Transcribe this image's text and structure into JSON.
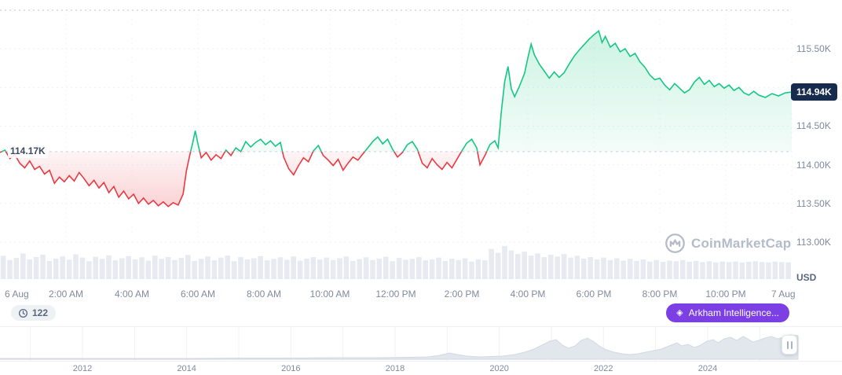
{
  "watermark": "CoinMarketCap",
  "colors": {
    "up": "#16c784",
    "down": "#ea3943",
    "price_tag_bg": "#172b4d",
    "annotation_badge_bg": "#7b3fe4",
    "axis_text": "#808a9d"
  },
  "chart": {
    "baseline_label": "114.17K",
    "current_price_label": "114.94K",
    "unit_label": "USD",
    "y_axis_labels": [
      "115.50K",
      "114.50K",
      "114.00K",
      "113.50K",
      "113.00K"
    ]
  },
  "badges": {
    "history_count": "122",
    "annotation": "Arkham Intelligence..."
  },
  "chart_data": {
    "type": "line",
    "title": "Price, 6 Aug - 7 Aug (USD)",
    "x_unit": "hours since 6 Aug 00:00",
    "y_unit": "USD thousands",
    "ylim": [
      112.95,
      116.13
    ],
    "baseline": 114.17,
    "current_price": 114.94,
    "grid_prices": [
      115.5,
      115.0,
      114.5,
      114.0,
      113.5,
      113.0
    ],
    "x_ticks": [
      {
        "label": "6 Aug",
        "t": 0
      },
      {
        "label": "2:00 AM",
        "t": 2
      },
      {
        "label": "4:00 AM",
        "t": 4
      },
      {
        "label": "6:00 AM",
        "t": 6
      },
      {
        "label": "8:00 AM",
        "t": 8
      },
      {
        "label": "10:00 AM",
        "t": 10
      },
      {
        "label": "12:00 PM",
        "t": 12
      },
      {
        "label": "2:00 PM",
        "t": 14
      },
      {
        "label": "4:00 PM",
        "t": 16
      },
      {
        "label": "6:00 PM",
        "t": 18
      },
      {
        "label": "8:00 PM",
        "t": 20
      },
      {
        "label": "10:00 PM",
        "t": 22
      },
      {
        "label": "7 Aug",
        "t": 24
      }
    ],
    "points": [
      [
        0,
        114.16
      ],
      [
        0.15,
        114.19
      ],
      [
        0.3,
        114.08
      ],
      [
        0.45,
        114.13
      ],
      [
        0.6,
        114.02
      ],
      [
        0.75,
        113.96
      ],
      [
        0.9,
        114.05
      ],
      [
        1.05,
        113.94
      ],
      [
        1.2,
        113.98
      ],
      [
        1.35,
        113.88
      ],
      [
        1.5,
        113.93
      ],
      [
        1.65,
        113.76
      ],
      [
        1.8,
        113.84
      ],
      [
        1.95,
        113.78
      ],
      [
        2.1,
        113.86
      ],
      [
        2.25,
        113.79
      ],
      [
        2.4,
        113.9
      ],
      [
        2.55,
        113.82
      ],
      [
        2.7,
        113.73
      ],
      [
        2.85,
        113.8
      ],
      [
        3.0,
        113.7
      ],
      [
        3.15,
        113.77
      ],
      [
        3.3,
        113.64
      ],
      [
        3.45,
        113.72
      ],
      [
        3.6,
        113.58
      ],
      [
        3.75,
        113.66
      ],
      [
        3.9,
        113.56
      ],
      [
        4.05,
        113.62
      ],
      [
        4.2,
        113.5
      ],
      [
        4.35,
        113.57
      ],
      [
        4.5,
        113.49
      ],
      [
        4.65,
        113.54
      ],
      [
        4.8,
        113.47
      ],
      [
        4.95,
        113.52
      ],
      [
        5.1,
        113.46
      ],
      [
        5.25,
        113.51
      ],
      [
        5.4,
        113.48
      ],
      [
        5.55,
        113.62
      ],
      [
        5.65,
        113.92
      ],
      [
        5.75,
        114.12
      ],
      [
        5.85,
        114.3
      ],
      [
        5.92,
        114.44
      ],
      [
        6.0,
        114.27
      ],
      [
        6.1,
        114.09
      ],
      [
        6.25,
        114.16
      ],
      [
        6.4,
        114.06
      ],
      [
        6.55,
        114.13
      ],
      [
        6.7,
        114.08
      ],
      [
        6.85,
        114.19
      ],
      [
        7.0,
        114.12
      ],
      [
        7.15,
        114.22
      ],
      [
        7.3,
        114.17
      ],
      [
        7.45,
        114.3
      ],
      [
        7.6,
        114.23
      ],
      [
        7.75,
        114.29
      ],
      [
        7.9,
        114.33
      ],
      [
        8.05,
        114.26
      ],
      [
        8.2,
        114.31
      ],
      [
        8.35,
        114.24
      ],
      [
        8.5,
        114.29
      ],
      [
        8.6,
        114.1
      ],
      [
        8.75,
        113.95
      ],
      [
        8.9,
        113.87
      ],
      [
        9.05,
        113.99
      ],
      [
        9.2,
        114.09
      ],
      [
        9.35,
        114.04
      ],
      [
        9.5,
        114.18
      ],
      [
        9.65,
        114.25
      ],
      [
        9.8,
        114.12
      ],
      [
        9.95,
        114.06
      ],
      [
        10.1,
        113.99
      ],
      [
        10.25,
        114.07
      ],
      [
        10.4,
        113.93
      ],
      [
        10.55,
        114.02
      ],
      [
        10.7,
        114.1
      ],
      [
        10.85,
        114.06
      ],
      [
        11.0,
        114.14
      ],
      [
        11.15,
        114.22
      ],
      [
        11.3,
        114.3
      ],
      [
        11.45,
        114.36
      ],
      [
        11.6,
        114.27
      ],
      [
        11.75,
        114.33
      ],
      [
        11.9,
        114.2
      ],
      [
        12.05,
        114.1
      ],
      [
        12.2,
        114.16
      ],
      [
        12.35,
        114.26
      ],
      [
        12.5,
        114.3
      ],
      [
        12.65,
        114.2
      ],
      [
        12.8,
        114.02
      ],
      [
        12.95,
        113.96
      ],
      [
        13.1,
        114.08
      ],
      [
        13.25,
        114.0
      ],
      [
        13.4,
        113.94
      ],
      [
        13.55,
        114.03
      ],
      [
        13.7,
        113.96
      ],
      [
        13.85,
        114.07
      ],
      [
        14.0,
        114.18
      ],
      [
        14.15,
        114.28
      ],
      [
        14.3,
        114.33
      ],
      [
        14.45,
        114.22
      ],
      [
        14.55,
        114.0
      ],
      [
        14.7,
        114.12
      ],
      [
        14.85,
        114.26
      ],
      [
        15.0,
        114.31
      ],
      [
        15.1,
        114.22
      ],
      [
        15.2,
        114.7
      ],
      [
        15.3,
        115.08
      ],
      [
        15.4,
        115.27
      ],
      [
        15.5,
        114.98
      ],
      [
        15.6,
        114.88
      ],
      [
        15.75,
        115.02
      ],
      [
        15.9,
        115.18
      ],
      [
        16.0,
        115.38
      ],
      [
        16.1,
        115.56
      ],
      [
        16.2,
        115.42
      ],
      [
        16.35,
        115.3
      ],
      [
        16.5,
        115.21
      ],
      [
        16.65,
        115.12
      ],
      [
        16.8,
        115.2
      ],
      [
        16.95,
        115.13
      ],
      [
        17.1,
        115.19
      ],
      [
        17.25,
        115.3
      ],
      [
        17.4,
        115.4
      ],
      [
        17.55,
        115.48
      ],
      [
        17.7,
        115.55
      ],
      [
        17.85,
        115.62
      ],
      [
        18.0,
        115.68
      ],
      [
        18.15,
        115.73
      ],
      [
        18.25,
        115.58
      ],
      [
        18.35,
        115.66
      ],
      [
        18.5,
        115.52
      ],
      [
        18.65,
        115.57
      ],
      [
        18.8,
        115.46
      ],
      [
        18.95,
        115.5
      ],
      [
        19.1,
        115.4
      ],
      [
        19.25,
        115.44
      ],
      [
        19.4,
        115.33
      ],
      [
        19.55,
        115.26
      ],
      [
        19.7,
        115.16
      ],
      [
        19.85,
        115.1
      ],
      [
        20.0,
        115.12
      ],
      [
        20.15,
        115.03
      ],
      [
        20.3,
        114.97
      ],
      [
        20.45,
        115.05
      ],
      [
        20.6,
        114.99
      ],
      [
        20.75,
        114.93
      ],
      [
        20.9,
        114.97
      ],
      [
        21.05,
        115.07
      ],
      [
        21.2,
        115.13
      ],
      [
        21.35,
        115.04
      ],
      [
        21.5,
        115.09
      ],
      [
        21.65,
        115.01
      ],
      [
        21.8,
        115.05
      ],
      [
        21.95,
        114.99
      ],
      [
        22.1,
        115.03
      ],
      [
        22.25,
        114.96
      ],
      [
        22.4,
        115.0
      ],
      [
        22.55,
        114.93
      ],
      [
        22.7,
        114.9
      ],
      [
        22.85,
        114.95
      ],
      [
        23.0,
        114.9
      ],
      [
        23.2,
        114.87
      ],
      [
        23.4,
        114.92
      ],
      [
        23.6,
        114.89
      ],
      [
        23.8,
        114.93
      ],
      [
        24.0,
        114.94
      ]
    ],
    "volume_bars": [
      0.62,
      0.48,
      0.55,
      0.7,
      0.5,
      0.58,
      0.66,
      0.45,
      0.53,
      0.6,
      0.49,
      0.67,
      0.56,
      0.44,
      0.59,
      0.52,
      0.64,
      0.47,
      0.54,
      0.61,
      0.5,
      0.57,
      0.46,
      0.63,
      0.52,
      0.58,
      0.48,
      0.55,
      0.65,
      0.45,
      0.52,
      0.6,
      0.47,
      0.56,
      0.63,
      0.44,
      0.58,
      0.5,
      0.54,
      0.61,
      0.47,
      0.52,
      0.57,
      0.49,
      0.6,
      0.46,
      0.53,
      0.58,
      0.5,
      0.56,
      0.48,
      0.54,
      0.6,
      0.45,
      0.51,
      0.57,
      0.48,
      0.53,
      0.59,
      0.44,
      0.55,
      0.49,
      0.52,
      0.58,
      0.47,
      0.5,
      0.56,
      0.45,
      0.52,
      0.48,
      0.54,
      0.43,
      0.5,
      0.47,
      0.85,
      0.72,
      0.95,
      0.8,
      0.68,
      0.76,
      0.63,
      0.7,
      0.58,
      0.66,
      0.6,
      0.68,
      0.56,
      0.62,
      0.53,
      0.58,
      0.5,
      0.56,
      0.48,
      0.54,
      0.46,
      0.52,
      0.45,
      0.5,
      0.43,
      0.48,
      0.42,
      0.46,
      0.44,
      0.48,
      0.42,
      0.45,
      0.41,
      0.44,
      0.4,
      0.43,
      0.41,
      0.43,
      0.4,
      0.42,
      0.44,
      0.41,
      0.4,
      0.43,
      0.41,
      0.4
    ]
  },
  "timeline": {
    "years": [
      "2012",
      "2014",
      "2016",
      "2018",
      "2020",
      "2022",
      "2024"
    ],
    "profile": [
      [
        0,
        1
      ],
      [
        60,
        1
      ],
      [
        120,
        1
      ],
      [
        180,
        1
      ],
      [
        240,
        1
      ],
      [
        300,
        1.5
      ],
      [
        360,
        1.5
      ],
      [
        420,
        2
      ],
      [
        480,
        2
      ],
      [
        520,
        2.5
      ],
      [
        545,
        3
      ],
      [
        560,
        5
      ],
      [
        572,
        8
      ],
      [
        582,
        6
      ],
      [
        595,
        4
      ],
      [
        610,
        3
      ],
      [
        625,
        3.5
      ],
      [
        640,
        4
      ],
      [
        655,
        6
      ],
      [
        668,
        9
      ],
      [
        680,
        13
      ],
      [
        692,
        19
      ],
      [
        700,
        23
      ],
      [
        708,
        25
      ],
      [
        716,
        18
      ],
      [
        724,
        14
      ],
      [
        732,
        17
      ],
      [
        740,
        24
      ],
      [
        748,
        27
      ],
      [
        755,
        23
      ],
      [
        763,
        17
      ],
      [
        772,
        12
      ],
      [
        782,
        9
      ],
      [
        792,
        7
      ],
      [
        802,
        6
      ],
      [
        812,
        7
      ],
      [
        822,
        9
      ],
      [
        832,
        11
      ],
      [
        842,
        13
      ],
      [
        852,
        17
      ],
      [
        862,
        21
      ],
      [
        868,
        17
      ],
      [
        876,
        19
      ],
      [
        884,
        15
      ],
      [
        892,
        18
      ],
      [
        900,
        23
      ],
      [
        908,
        25
      ],
      [
        914,
        21
      ],
      [
        922,
        26
      ],
      [
        930,
        28
      ],
      [
        938,
        24
      ],
      [
        946,
        29
      ],
      [
        952,
        26
      ],
      [
        958,
        22
      ],
      [
        966,
        24
      ],
      [
        974,
        27
      ],
      [
        982,
        29
      ],
      [
        990,
        26
      ],
      [
        998,
        28
      ],
      [
        1006,
        31
      ],
      [
        1016,
        30
      ]
    ]
  }
}
